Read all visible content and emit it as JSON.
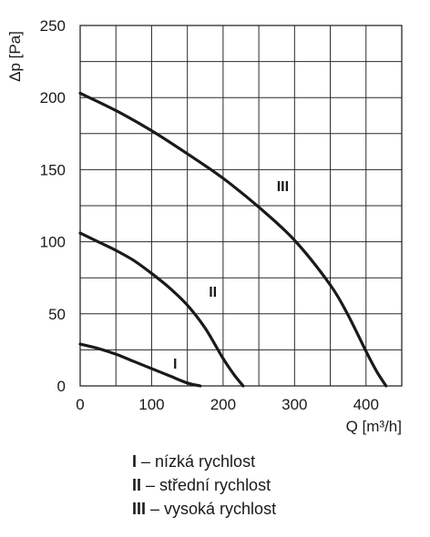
{
  "chart_data": {
    "type": "line",
    "ylabel": "Δp [Pa]",
    "xlabel": "Q [m³/h]",
    "xlim": [
      0,
      450
    ],
    "ylim": [
      0,
      250
    ],
    "x_ticks": [
      "0",
      "100",
      "200",
      "300",
      "400"
    ],
    "y_ticks": [
      "0",
      "50",
      "100",
      "150",
      "200",
      "250"
    ],
    "grid": true,
    "series": [
      {
        "name": "I",
        "x": [
          0,
          25,
          50,
          75,
          100,
          125,
          150,
          168
        ],
        "y": [
          29,
          26,
          22,
          17,
          12,
          7,
          2,
          0
        ]
      },
      {
        "name": "II",
        "x": [
          0,
          25,
          50,
          75,
          100,
          125,
          150,
          175,
          200,
          215,
          228
        ],
        "y": [
          106,
          100,
          94,
          87,
          78,
          68,
          56,
          40,
          19,
          8,
          0
        ]
      },
      {
        "name": "III",
        "x": [
          0,
          50,
          100,
          150,
          200,
          250,
          300,
          350,
          375,
          400,
          415,
          428
        ],
        "y": [
          203,
          191,
          177,
          161,
          144,
          124,
          101,
          70,
          49,
          24,
          10,
          0
        ]
      }
    ]
  },
  "legend": [
    {
      "key": "I",
      "text": " – nízká rychlost"
    },
    {
      "key": "II",
      "text": " – střední rychlost"
    },
    {
      "key": "III",
      "text": " – vysoká rychlost"
    }
  ],
  "colors": {
    "curve": "#1a1a1a",
    "grid": "#2a2a2a"
  }
}
